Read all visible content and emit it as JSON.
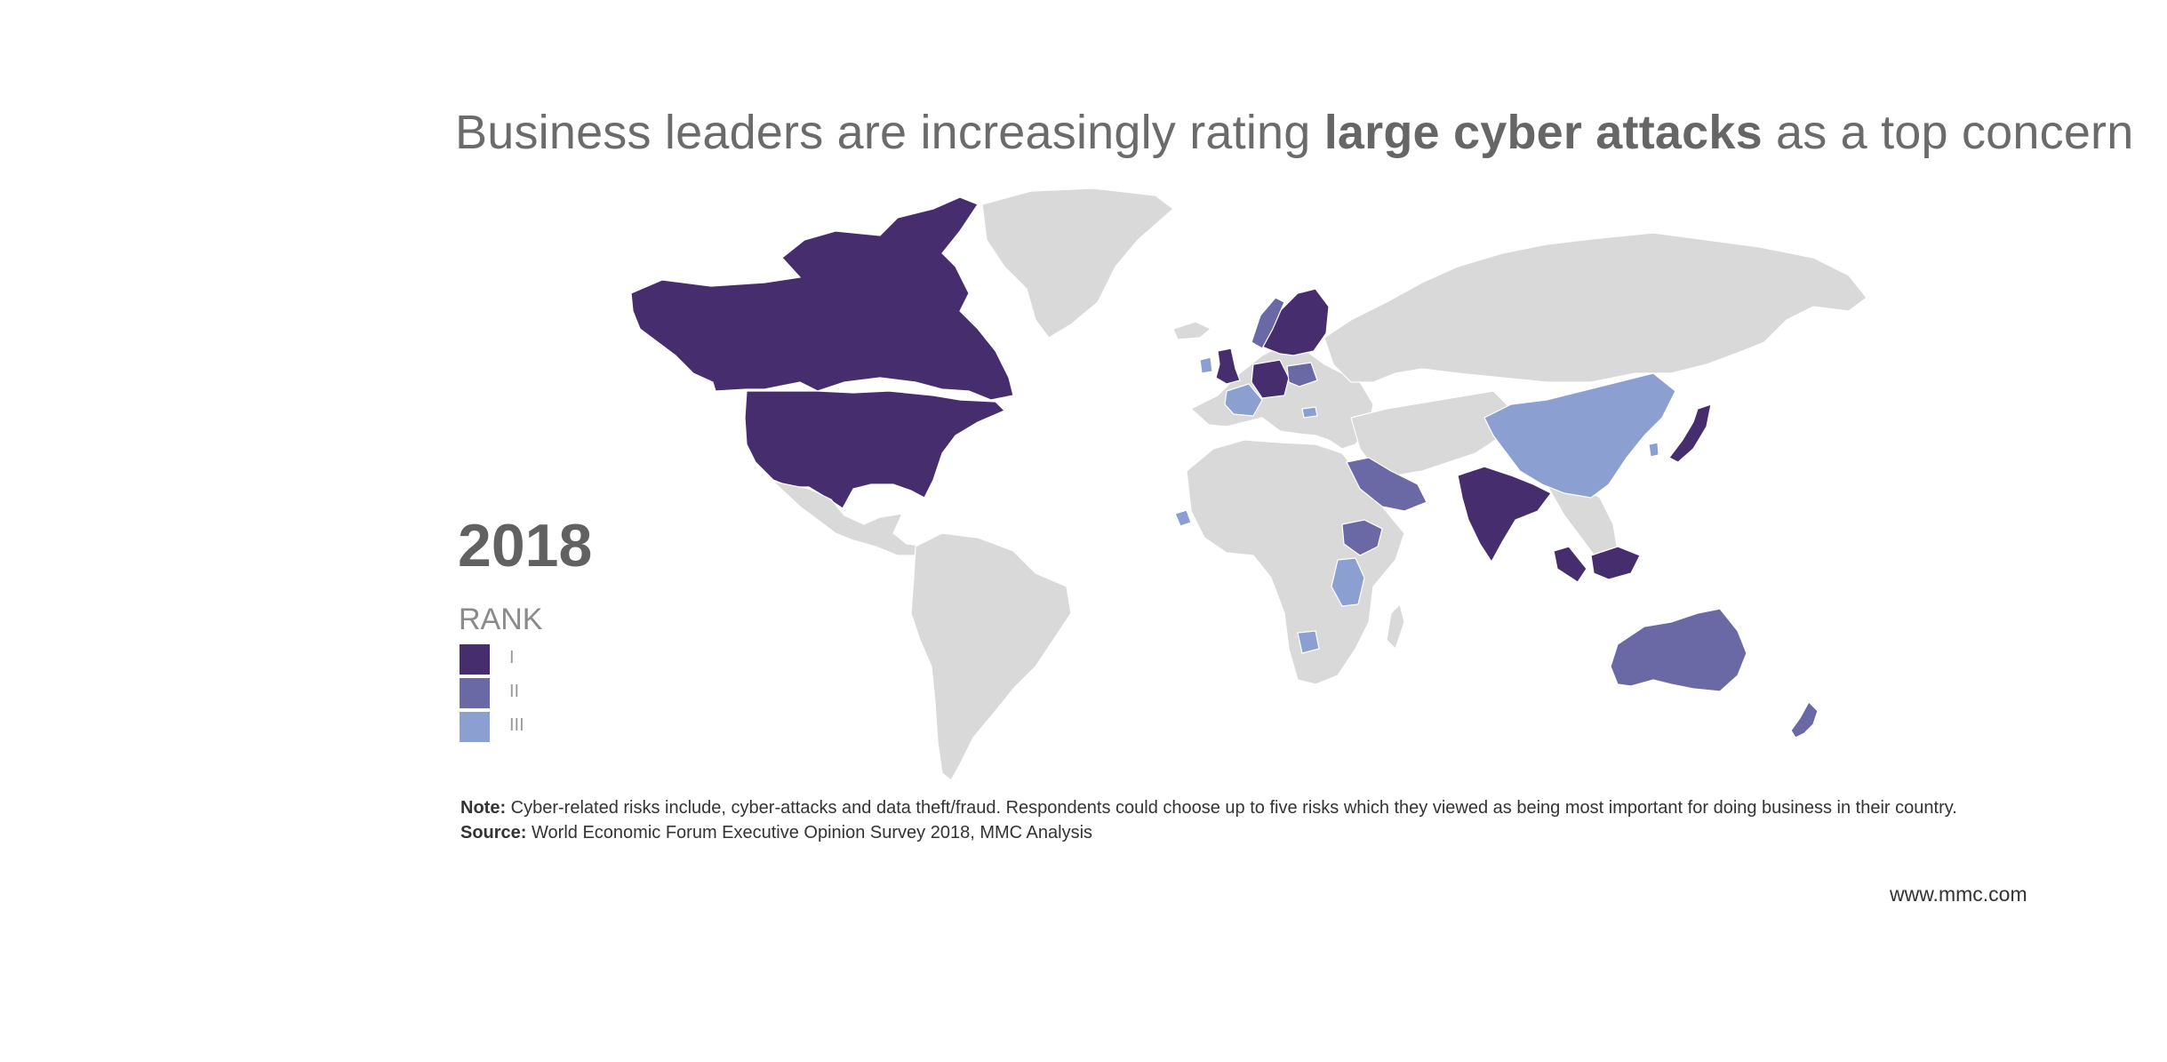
{
  "title": {
    "before": "Business leaders are increasingly rating ",
    "bold": "large cyber attacks",
    "after": " as a top concern"
  },
  "year": "2018",
  "legend": {
    "title": "RANK",
    "items": [
      {
        "label": "I",
        "color": "#452d6e"
      },
      {
        "label": "II",
        "color": "#6b68a6"
      },
      {
        "label": "III",
        "color": "#8c9fd1"
      }
    ]
  },
  "colors": {
    "land": "#d9d9d9",
    "rank1": "#452d6e",
    "rank2": "#6b68a6",
    "rank3": "#8c9fd1"
  },
  "map_data": {
    "rank_1": [
      "United States",
      "Canada",
      "United Kingdom",
      "Netherlands",
      "Germany",
      "Switzerland",
      "Sweden",
      "Finland",
      "Estonia",
      "India",
      "Japan",
      "Malaysia",
      "Singapore",
      "Indonesia"
    ],
    "rank_2": [
      "Norway",
      "Poland",
      "Saudi Arabia",
      "United Arab Emirates",
      "Ethiopia",
      "Australia",
      "New Zealand"
    ],
    "rank_3": [
      "Ireland",
      "France",
      "Hungary",
      "China",
      "South Korea",
      "Kenya",
      "Tanzania",
      "Zimbabwe"
    ]
  },
  "note": {
    "label": "Note:",
    "text": " Cyber-related risks include, cyber-attacks and data theft/fraud. Respondents could choose up to five risks which they viewed as being most important for doing business in their country."
  },
  "source": {
    "label": "Source:",
    "text": " World Economic Forum Executive Opinion Survey 2018, MMC Analysis"
  },
  "website": "www.mmc.com"
}
